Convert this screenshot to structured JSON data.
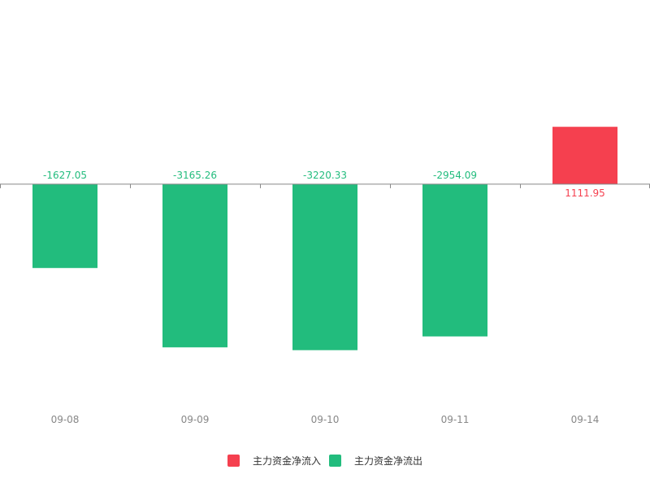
{
  "chart_data": {
    "type": "bar",
    "categories": [
      "09-08",
      "09-09",
      "09-10",
      "09-11",
      "09-14"
    ],
    "values": [
      -1627.05,
      -3165.26,
      -3220.33,
      -2954.09,
      1111.95
    ],
    "value_labels": [
      "-1627.05",
      "-3165.26",
      "-3220.33",
      "-2954.09",
      "1111.95"
    ],
    "ylim": [
      -4300,
      2800
    ],
    "grid": false,
    "legend_position": "bottom-center",
    "colors": {
      "inflow": "#f5404f",
      "outflow": "#22bc7d",
      "axis": "#888888"
    },
    "legend": [
      {
        "name": "主力资金净流入",
        "color_key": "inflow"
      },
      {
        "name": "主力资金净流出",
        "color_key": "outflow"
      }
    ]
  }
}
